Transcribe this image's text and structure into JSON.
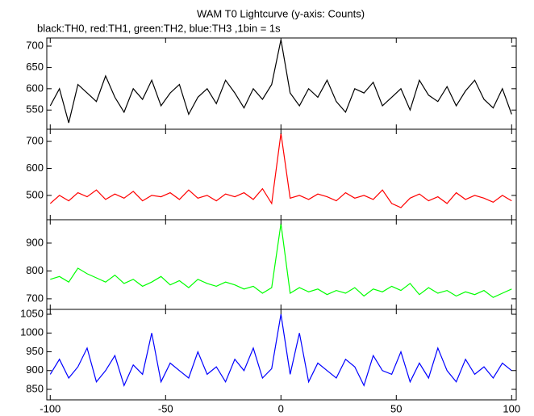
{
  "chart_data": [
    {
      "type": "line",
      "title": "WAM T0 Lightcurve (y-axis: Counts)",
      "subtitle": "black:TH0, red:TH1, green:TH2, blue:TH3 ,1bin = 1s",
      "color": "#000000",
      "x": [
        -100,
        -96,
        -92,
        -88,
        -84,
        -80,
        -76,
        -72,
        -68,
        -64,
        -60,
        -56,
        -52,
        -48,
        -44,
        -40,
        -36,
        -32,
        -28,
        -24,
        -20,
        -16,
        -12,
        -8,
        -4,
        0,
        4,
        8,
        12,
        16,
        20,
        24,
        28,
        32,
        36,
        40,
        44,
        48,
        52,
        56,
        60,
        64,
        68,
        72,
        76,
        80,
        84,
        88,
        92,
        96,
        100
      ],
      "values": [
        560,
        600,
        520,
        610,
        590,
        570,
        630,
        580,
        545,
        600,
        575,
        620,
        560,
        590,
        610,
        540,
        580,
        600,
        565,
        620,
        590,
        555,
        600,
        575,
        610,
        715,
        590,
        560,
        600,
        580,
        620,
        570,
        545,
        600,
        590,
        615,
        560,
        580,
        600,
        550,
        620,
        585,
        570,
        605,
        560,
        595,
        620,
        575,
        555,
        600,
        540
      ],
      "xlim": [
        -101.5,
        102
      ],
      "xticks": [
        -100,
        -50,
        0,
        50,
        100
      ],
      "ylim": [
        505,
        719
      ],
      "yticks": [
        550,
        600,
        650,
        700
      ]
    },
    {
      "type": "line",
      "color": "#ff0000",
      "x": [
        -100,
        -96,
        -92,
        -88,
        -84,
        -80,
        -76,
        -72,
        -68,
        -64,
        -60,
        -56,
        -52,
        -48,
        -44,
        -40,
        -36,
        -32,
        -28,
        -24,
        -20,
        -16,
        -12,
        -8,
        -4,
        0,
        4,
        8,
        12,
        16,
        20,
        24,
        28,
        32,
        36,
        40,
        44,
        48,
        52,
        56,
        60,
        64,
        68,
        72,
        76,
        80,
        84,
        88,
        92,
        96,
        100
      ],
      "values": [
        470,
        500,
        480,
        510,
        495,
        520,
        485,
        505,
        490,
        515,
        480,
        500,
        495,
        510,
        485,
        520,
        490,
        500,
        480,
        505,
        495,
        510,
        485,
        525,
        470,
        730,
        490,
        500,
        485,
        505,
        495,
        480,
        510,
        490,
        500,
        485,
        520,
        470,
        455,
        490,
        505,
        480,
        495,
        470,
        510,
        485,
        500,
        490,
        475,
        500,
        480
      ],
      "xlim": [
        -101.5,
        102
      ],
      "xticks": [
        -100,
        -50,
        0,
        50,
        100
      ],
      "ylim": [
        410,
        745
      ],
      "yticks": [
        500,
        600,
        700
      ]
    },
    {
      "type": "line",
      "color": "#00ff00",
      "x": [
        -100,
        -96,
        -92,
        -88,
        -84,
        -80,
        -76,
        -72,
        -68,
        -64,
        -60,
        -56,
        -52,
        -48,
        -44,
        -40,
        -36,
        -32,
        -28,
        -24,
        -20,
        -16,
        -12,
        -8,
        -4,
        0,
        4,
        8,
        12,
        16,
        20,
        24,
        28,
        32,
        36,
        40,
        44,
        48,
        52,
        56,
        60,
        64,
        68,
        72,
        76,
        80,
        84,
        88,
        92,
        96,
        100
      ],
      "values": [
        770,
        780,
        760,
        810,
        790,
        775,
        760,
        785,
        755,
        770,
        745,
        760,
        780,
        750,
        765,
        740,
        770,
        755,
        745,
        760,
        750,
        735,
        745,
        720,
        740,
        970,
        720,
        740,
        725,
        735,
        715,
        730,
        720,
        740,
        710,
        735,
        725,
        745,
        730,
        755,
        715,
        740,
        720,
        730,
        710,
        725,
        715,
        730,
        705,
        720,
        735
      ],
      "xlim": [
        -101.5,
        102
      ],
      "xticks": [
        -100,
        -50,
        0,
        50,
        100
      ],
      "ylim": [
        662,
        984
      ],
      "yticks": [
        700,
        800,
        900
      ]
    },
    {
      "type": "line",
      "color": "#0000ff",
      "x": [
        -100,
        -96,
        -92,
        -88,
        -84,
        -80,
        -76,
        -72,
        -68,
        -64,
        -60,
        -56,
        -52,
        -48,
        -44,
        -40,
        -36,
        -32,
        -28,
        -24,
        -20,
        -16,
        -12,
        -8,
        -4,
        0,
        4,
        8,
        12,
        16,
        20,
        24,
        28,
        32,
        36,
        40,
        44,
        48,
        52,
        56,
        60,
        64,
        68,
        72,
        76,
        80,
        84,
        88,
        92,
        96,
        100
      ],
      "values": [
        890,
        930,
        880,
        910,
        960,
        870,
        900,
        940,
        860,
        915,
        890,
        1000,
        870,
        920,
        900,
        880,
        950,
        890,
        910,
        870,
        930,
        900,
        960,
        880,
        905,
        1050,
        890,
        1000,
        870,
        920,
        900,
        880,
        930,
        910,
        860,
        940,
        900,
        890,
        950,
        870,
        920,
        880,
        960,
        900,
        870,
        930,
        890,
        910,
        880,
        920,
        900
      ],
      "xlim": [
        -101.5,
        102
      ],
      "xticks": [
        -100,
        -50,
        0,
        50,
        100
      ],
      "ylim": [
        822,
        1063
      ],
      "yticks": [
        850,
        900,
        950,
        1000,
        1050
      ]
    }
  ]
}
